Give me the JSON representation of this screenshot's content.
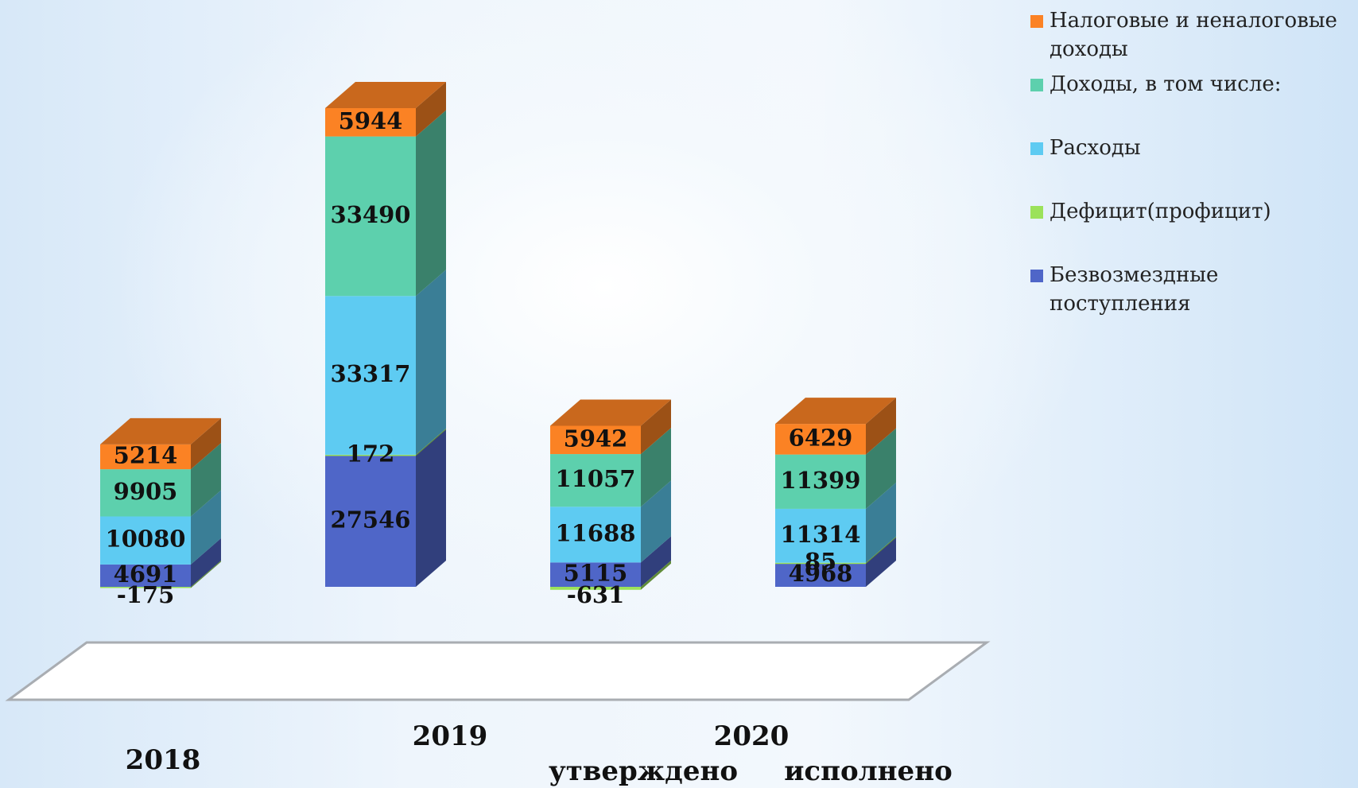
{
  "chart_data": {
    "type": "bar3d_stacked",
    "categories": [
      "2018",
      "2019",
      "утверждено",
      "исполнено"
    ],
    "group_label": "2020",
    "series": [
      {
        "name": "Безвозмездные поступления",
        "color": "#4f66c8",
        "values": [
          4691,
          27546,
          5115,
          4968
        ]
      },
      {
        "name": "Дефицит(профицит)",
        "color": "#9be25a",
        "values": [
          -175,
          172,
          -631,
          85
        ]
      },
      {
        "name": "Расходы",
        "color": "#5ecbf2",
        "values": [
          10080,
          33317,
          11688,
          11314
        ]
      },
      {
        "name": "Доходы, в том числе:",
        "color": "#5dd0ad",
        "values": [
          9905,
          33490,
          11057,
          11399
        ]
      },
      {
        "name": "Налоговые и неналоговые доходы",
        "color": "#fb8224",
        "values": [
          5214,
          5944,
          5942,
          6429
        ]
      }
    ],
    "legend": "right"
  }
}
